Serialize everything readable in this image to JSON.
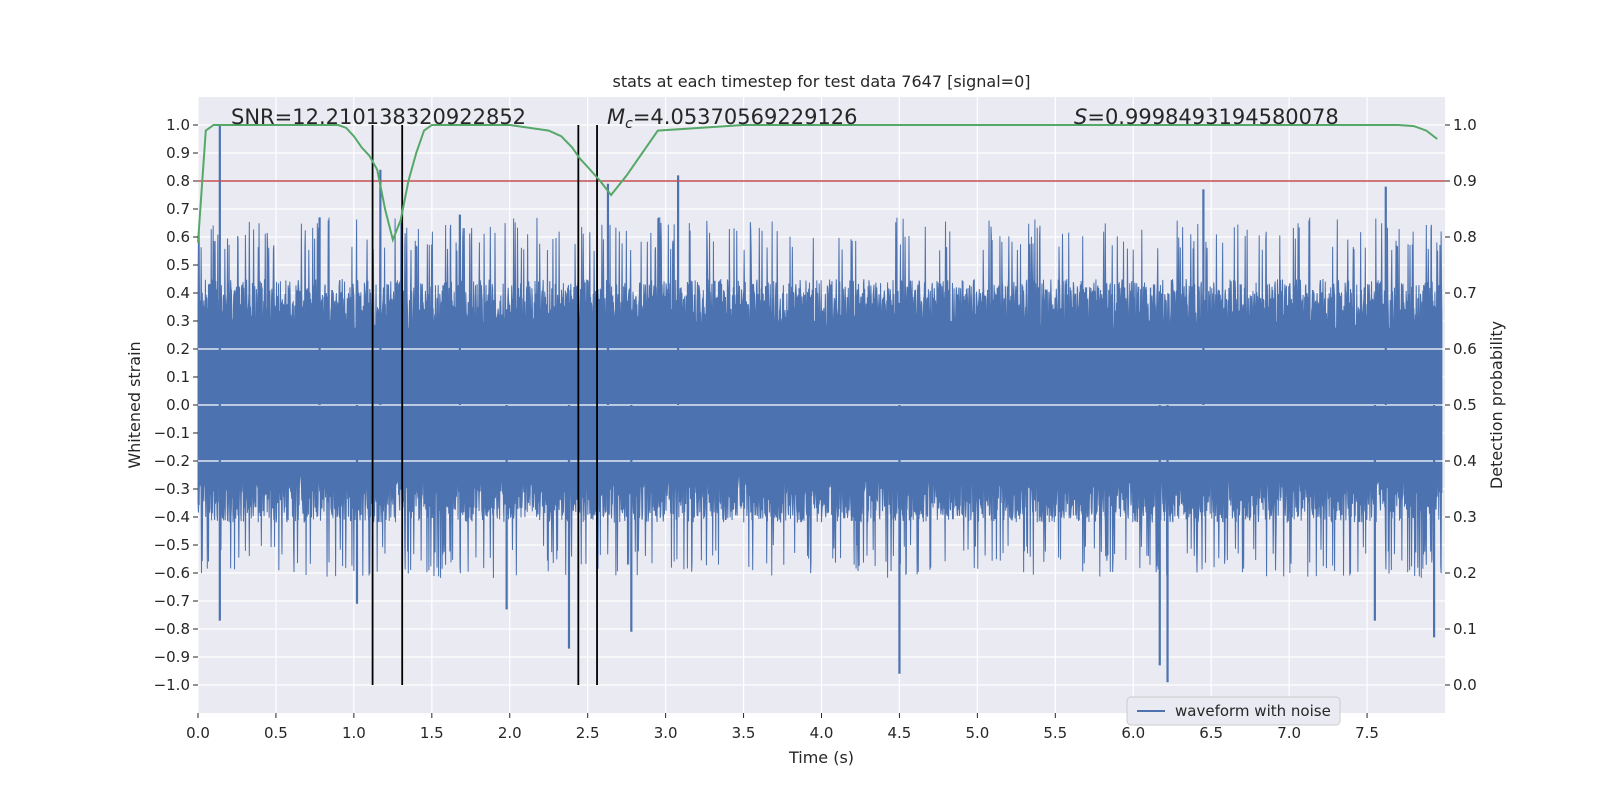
{
  "chart_data": {
    "type": "line",
    "title": "stats at each timestep for test data 7647 [signal=0]",
    "xlabel": "Time (s)",
    "ylabel": "Whitened strain",
    "y2label": "Detection probability",
    "xlim": [
      0,
      8.0
    ],
    "ylim": [
      -1.1,
      1.1
    ],
    "y2lim": [
      -0.05,
      1.05
    ],
    "xticks": [
      0.0,
      0.5,
      1.0,
      1.5,
      2.0,
      2.5,
      3.0,
      3.5,
      4.0,
      4.5,
      5.0,
      5.5,
      6.0,
      6.5,
      7.0,
      7.5
    ],
    "xtick_labels": [
      "0.0",
      "0.5",
      "1.0",
      "1.5",
      "2.0",
      "2.5",
      "3.0",
      "3.5",
      "4.0",
      "4.5",
      "5.0",
      "5.5",
      "6.0",
      "6.5",
      "7.0",
      "7.5"
    ],
    "yticks": [
      1.0,
      0.9,
      0.8,
      0.7,
      0.6,
      0.5,
      0.4,
      0.3,
      0.2,
      0.1,
      0.0,
      -0.1,
      -0.2,
      -0.3,
      -0.4,
      -0.5,
      -0.6,
      -0.7,
      -0.8,
      -0.9,
      -1.0
    ],
    "ytick_labels": [
      "1.0",
      "0.9",
      "0.8",
      "0.7",
      "0.6",
      "0.5",
      "0.4",
      "0.3",
      "0.2",
      "0.1",
      "0.0",
      "−0.1",
      "−0.2",
      "−0.3",
      "−0.4",
      "−0.5",
      "−0.6",
      "−0.7",
      "−0.8",
      "−0.9",
      "−1.0"
    ],
    "y2ticks": [
      1.0,
      0.9,
      0.8,
      0.7,
      0.6,
      0.5,
      0.4,
      0.3,
      0.2,
      0.1,
      0.0
    ],
    "y2tick_labels": [
      "1.0",
      "0.9",
      "0.8",
      "0.7",
      "0.6",
      "0.5",
      "0.4",
      "0.3",
      "0.2",
      "0.1",
      "0.0"
    ],
    "annotations": {
      "snr": "SNR=12.210138320922852",
      "mc_symbol": "M",
      "mc_sub": "c",
      "mc_value": "=4.05370569229126",
      "s_symbol": "S",
      "s_value": "=0.9998493194580078"
    },
    "legend": {
      "label": "waveform with noise",
      "placement": "lower-right"
    },
    "series": [
      {
        "name": "waveform with noise",
        "kind": "noise",
        "axis": "left",
        "color": "#4c72b0",
        "envelope_pos_typical": 0.45,
        "envelope_neg_typical": -0.42,
        "spikes": [
          {
            "x": 0.14,
            "y": 1.0
          },
          {
            "x": 0.14,
            "y": -0.77
          },
          {
            "x": 1.17,
            "y": 0.84
          },
          {
            "x": 2.38,
            "y": -0.87
          },
          {
            "x": 2.78,
            "y": -0.81
          },
          {
            "x": 3.08,
            "y": 0.82
          },
          {
            "x": 4.5,
            "y": -0.96
          },
          {
            "x": 6.22,
            "y": -0.99
          },
          {
            "x": 6.17,
            "y": -0.93
          },
          {
            "x": 7.62,
            "y": 0.78
          },
          {
            "x": 7.55,
            "y": -0.77
          },
          {
            "x": 7.93,
            "y": -0.83
          },
          {
            "x": 6.45,
            "y": 0.77
          },
          {
            "x": 0.78,
            "y": 0.67
          },
          {
            "x": 1.02,
            "y": -0.71
          },
          {
            "x": 1.68,
            "y": 0.68
          },
          {
            "x": 1.98,
            "y": -0.73
          },
          {
            "x": 2.63,
            "y": 0.79
          }
        ]
      },
      {
        "name": "detection probability",
        "axis": "right",
        "color": "#55a868",
        "x": [
          0.0,
          0.05,
          0.1,
          0.15,
          0.9,
          0.95,
          1.0,
          1.05,
          1.1,
          1.15,
          1.2,
          1.25,
          1.3,
          1.35,
          1.4,
          1.45,
          1.5,
          2.0,
          2.25,
          2.33,
          2.4,
          2.45,
          2.5,
          2.58,
          2.65,
          2.75,
          2.85,
          2.95,
          3.5,
          7.7,
          7.8,
          7.88,
          7.95
        ],
        "y": [
          0.79,
          0.99,
          1.0,
          1.0,
          1.0,
          0.995,
          0.98,
          0.96,
          0.945,
          0.92,
          0.85,
          0.795,
          0.83,
          0.9,
          0.95,
          0.99,
          1.0,
          1.0,
          0.99,
          0.98,
          0.96,
          0.94,
          0.925,
          0.9,
          0.875,
          0.91,
          0.95,
          0.99,
          1.0,
          1.0,
          0.998,
          0.99,
          0.975
        ]
      }
    ],
    "hlines": [
      {
        "y": 0.8,
        "axis": "left",
        "color": "#c44e52"
      }
    ],
    "vlines": [
      {
        "x": 1.12
      },
      {
        "x": 1.31
      },
      {
        "x": 2.44
      },
      {
        "x": 2.56
      }
    ]
  }
}
